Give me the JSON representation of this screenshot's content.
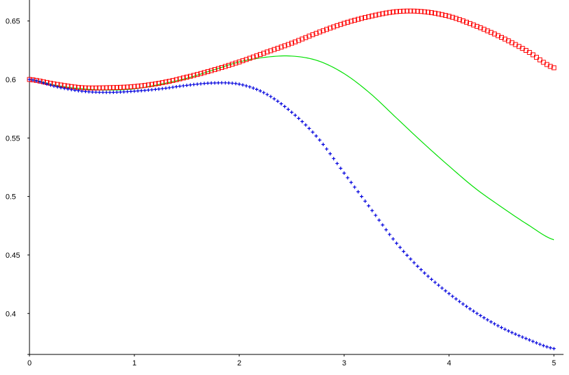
{
  "chart_data": {
    "type": "scatter",
    "title": "",
    "xlabel": "",
    "ylabel": "",
    "xlim": [
      0,
      5
    ],
    "ylim": [
      0.365,
      0.665
    ],
    "x_ticks": [
      0,
      1,
      2,
      3,
      4,
      5
    ],
    "x_tick_labels": [
      "0",
      "1",
      "2",
      "3",
      "4",
      "5"
    ],
    "y_ticks": [
      0.4,
      0.45,
      0.5,
      0.55,
      0.6,
      0.65
    ],
    "y_tick_labels": [
      "0.4",
      "0.45",
      "0.5",
      "0.55",
      "0.6",
      "0.65"
    ],
    "grid": false,
    "legend": "none",
    "series": [
      {
        "style": "square-markers",
        "color": "#ff0000",
        "x": [
          0,
          0.25,
          0.5,
          0.75,
          1.0,
          1.25,
          1.5,
          1.75,
          2.0,
          2.25,
          2.5,
          2.75,
          3.0,
          3.25,
          3.5,
          3.75,
          4.0,
          4.25,
          4.5,
          4.75,
          5.0
        ],
        "y": [
          0.6,
          0.596,
          0.593,
          0.593,
          0.594,
          0.597,
          0.602,
          0.608,
          0.615,
          0.623,
          0.631,
          0.64,
          0.648,
          0.654,
          0.658,
          0.658,
          0.654,
          0.646,
          0.636,
          0.624,
          0.61
        ]
      },
      {
        "style": "line",
        "color": "#00e000",
        "x": [
          0,
          0.25,
          0.5,
          0.75,
          1.0,
          1.25,
          1.5,
          1.75,
          2.0,
          2.25,
          2.5,
          2.75,
          3.0,
          3.25,
          3.5,
          3.75,
          4.0,
          4.25,
          4.5,
          4.75,
          5.0
        ],
        "y": [
          0.6,
          0.595,
          0.592,
          0.591,
          0.592,
          0.596,
          0.601,
          0.608,
          0.615,
          0.619,
          0.62,
          0.616,
          0.605,
          0.588,
          0.567,
          0.546,
          0.526,
          0.507,
          0.491,
          0.476,
          0.463
        ]
      },
      {
        "style": "plus-markers",
        "color": "#0000dd",
        "x": [
          0,
          0.25,
          0.5,
          0.75,
          1.0,
          1.25,
          1.5,
          1.75,
          2.0,
          2.25,
          2.5,
          2.75,
          3.0,
          3.25,
          3.5,
          3.75,
          4.0,
          4.25,
          4.5,
          4.75,
          5.0
        ],
        "y": [
          0.6,
          0.594,
          0.59,
          0.589,
          0.59,
          0.592,
          0.595,
          0.597,
          0.596,
          0.588,
          0.572,
          0.55,
          0.52,
          0.49,
          0.46,
          0.436,
          0.417,
          0.401,
          0.388,
          0.378,
          0.37
        ]
      }
    ]
  }
}
